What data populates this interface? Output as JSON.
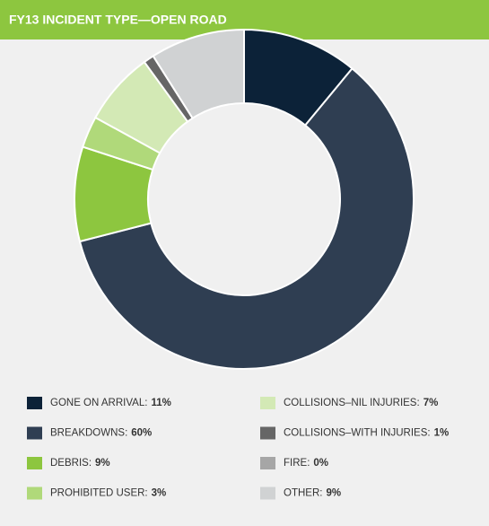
{
  "chart_data": {
    "type": "pie",
    "title": "FY13 INCIDENT TYPE—OPEN ROAD",
    "categories": [
      "GONE ON ARRIVAL:",
      "BREAKDOWNS:",
      "DEBRIS:",
      "PROHIBITED USER:",
      "COLLISIONS–NIL INJURIES:",
      "COLLISIONS–WITH INJURIES:",
      "FIRE:",
      "OTHER:"
    ],
    "values": [
      11,
      60,
      9,
      3,
      7,
      1,
      0,
      9
    ],
    "value_labels": [
      "11%",
      "60%",
      "9%",
      "3%",
      "7%",
      "1%",
      "0%",
      "9%"
    ],
    "colors": [
      "#0c2238",
      "#2f3e52",
      "#8dc63f",
      "#b0d97a",
      "#d3e9b5",
      "#666666",
      "#a6a6a6",
      "#d0d2d3"
    ],
    "donut": true
  }
}
